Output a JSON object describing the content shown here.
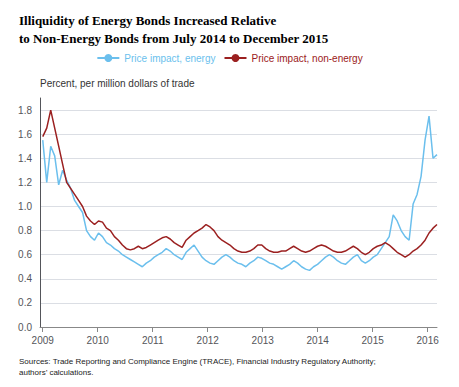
{
  "chart_data": {
    "type": "line",
    "title": "Illiquidity of Energy Bonds Increased Relative\nto Non-Energy Bonds from July 2014 to December 2015",
    "ylabel": "Percent, per million dollars of trade",
    "annotations": [
      "Sources: Trade Reporting and Compliance Engine (TRACE), Financial Industry Regulatory Authority;\nauthors’ calculations."
    ],
    "x": [
      2009,
      2009.0724,
      2009.1448,
      2009.2173,
      2009.2897,
      2009.3621,
      2009.4345,
      2009.507,
      2009.5794,
      2009.6518,
      2009.7242,
      2009.7967,
      2009.8691,
      2009.9415,
      2010.0139,
      2010.0864,
      2010.1588,
      2010.2312,
      2010.3036,
      2010.3761,
      2010.4485,
      2010.5209,
      2010.5933,
      2010.6658,
      2010.7382,
      2010.8106,
      2010.883,
      2010.9555,
      2011.0279,
      2011.1003,
      2011.1727,
      2011.2452,
      2011.3176,
      2011.39,
      2011.4624,
      2011.5348,
      2011.6073,
      2011.6797,
      2011.7521,
      2011.8245,
      2011.897,
      2011.9694,
      2012.0418,
      2012.1142,
      2012.1867,
      2012.2591,
      2012.3315,
      2012.4039,
      2012.4764,
      2012.5488,
      2012.6212,
      2012.6936,
      2012.7661,
      2012.8385,
      2012.9109,
      2012.9833,
      2013.0558,
      2013.1282,
      2013.2006,
      2013.273,
      2013.3455,
      2013.4179,
      2013.4903,
      2013.5627,
      2013.6352,
      2013.7076,
      2013.78,
      2013.8524,
      2013.9248,
      2013.9973,
      2014.0697,
      2014.1421,
      2014.2145,
      2014.287,
      2014.3594,
      2014.4318,
      2014.5042,
      2014.5767,
      2014.6491,
      2014.7215,
      2014.7939,
      2014.8664,
      2014.9388,
      2015.0112,
      2015.0836,
      2015.1561,
      2015.2285,
      2015.3009,
      2015.3733,
      2015.4458,
      2015.5182,
      2015.5906,
      2015.663,
      2015.7355,
      2015.8079,
      2015.8803,
      2015.9527,
      2016.0252,
      2016.0976,
      2016.17
    ],
    "series": [
      {
        "name": "Price impact, energy",
        "color": "#6BBFED",
        "values": [
          1.55,
          1.2,
          1.5,
          1.42,
          1.18,
          1.3,
          1.22,
          1.15,
          1.05,
          1.0,
          0.95,
          0.8,
          0.75,
          0.72,
          0.78,
          0.75,
          0.7,
          0.68,
          0.65,
          0.63,
          0.6,
          0.58,
          0.56,
          0.54,
          0.52,
          0.5,
          0.53,
          0.55,
          0.58,
          0.6,
          0.62,
          0.65,
          0.63,
          0.6,
          0.58,
          0.56,
          0.62,
          0.65,
          0.68,
          0.63,
          0.58,
          0.55,
          0.53,
          0.52,
          0.55,
          0.58,
          0.6,
          0.58,
          0.55,
          0.53,
          0.52,
          0.5,
          0.53,
          0.55,
          0.58,
          0.57,
          0.55,
          0.53,
          0.52,
          0.5,
          0.48,
          0.5,
          0.52,
          0.55,
          0.53,
          0.5,
          0.48,
          0.47,
          0.5,
          0.52,
          0.55,
          0.58,
          0.6,
          0.58,
          0.55,
          0.53,
          0.52,
          0.55,
          0.58,
          0.6,
          0.55,
          0.53,
          0.55,
          0.58,
          0.6,
          0.65,
          0.7,
          0.75,
          0.93,
          0.88,
          0.8,
          0.75,
          0.72,
          1.02,
          1.1,
          1.25,
          1.55,
          1.75,
          1.4,
          1.43
        ]
      },
      {
        "name": "Price impact, non-energy",
        "color": "#9B2020",
        "values": [
          1.58,
          1.65,
          1.8,
          1.65,
          1.5,
          1.35,
          1.2,
          1.15,
          1.1,
          1.05,
          1.0,
          0.92,
          0.88,
          0.85,
          0.88,
          0.87,
          0.82,
          0.8,
          0.75,
          0.72,
          0.68,
          0.65,
          0.64,
          0.65,
          0.67,
          0.65,
          0.66,
          0.68,
          0.7,
          0.72,
          0.74,
          0.75,
          0.73,
          0.7,
          0.68,
          0.66,
          0.72,
          0.75,
          0.78,
          0.8,
          0.82,
          0.85,
          0.83,
          0.8,
          0.75,
          0.72,
          0.7,
          0.68,
          0.65,
          0.63,
          0.62,
          0.62,
          0.63,
          0.65,
          0.68,
          0.68,
          0.65,
          0.63,
          0.62,
          0.62,
          0.63,
          0.63,
          0.65,
          0.67,
          0.65,
          0.63,
          0.62,
          0.63,
          0.65,
          0.67,
          0.68,
          0.67,
          0.65,
          0.63,
          0.62,
          0.62,
          0.63,
          0.65,
          0.67,
          0.65,
          0.62,
          0.6,
          0.62,
          0.65,
          0.67,
          0.68,
          0.7,
          0.68,
          0.65,
          0.62,
          0.6,
          0.58,
          0.6,
          0.63,
          0.65,
          0.68,
          0.72,
          0.78,
          0.82,
          0.85
        ]
      }
    ],
    "xlim": [
      2008.95,
      2016.17
    ],
    "xticks": [
      2009,
      2010,
      2011,
      2012,
      2013,
      2014,
      2015,
      2016
    ],
    "ylim": [
      0,
      1.9
    ],
    "yticks": [
      {
        "value": 0,
        "label": "0.0"
      },
      0.2,
      0.4,
      0.6,
      0.8,
      {
        "value": 1,
        "label": "1.0"
      },
      1.2,
      1.4,
      1.6,
      1.8
    ],
    "grid": true,
    "legend": "top"
  }
}
